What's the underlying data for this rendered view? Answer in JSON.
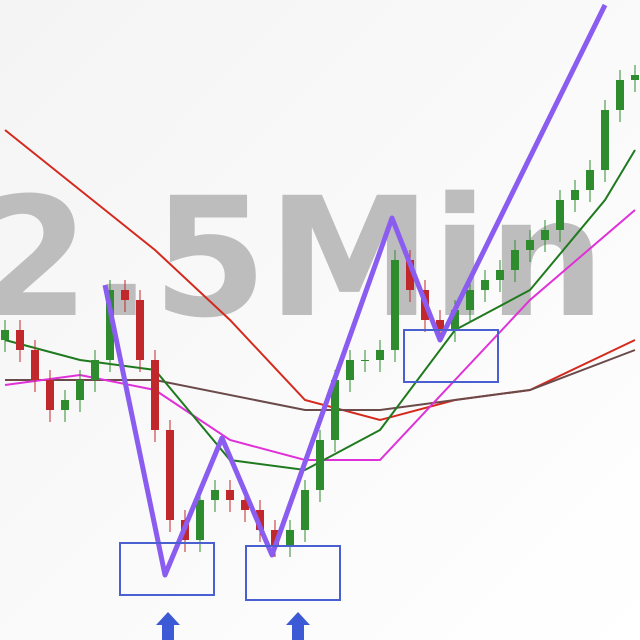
{
  "chart_data": {
    "type": "candlestick",
    "watermark": "2.5Min",
    "ylim": [
      0,
      640
    ],
    "open": [
      300,
      310,
      290,
      260,
      230,
      240,
      260,
      280,
      350,
      340,
      280,
      210,
      120,
      100,
      140,
      150,
      140,
      130,
      110,
      95,
      110,
      150,
      200,
      260,
      280,
      280,
      290,
      380,
      350,
      320,
      310,
      330,
      350,
      360,
      370,
      390,
      400,
      410,
      440,
      450,
      470,
      530,
      560
    ],
    "close": [
      310,
      290,
      260,
      230,
      240,
      260,
      280,
      350,
      340,
      280,
      210,
      120,
      100,
      140,
      150,
      140,
      130,
      110,
      95,
      110,
      150,
      200,
      260,
      280,
      280,
      290,
      380,
      350,
      320,
      310,
      330,
      350,
      360,
      370,
      390,
      400,
      410,
      440,
      450,
      470,
      530,
      560,
      565
    ],
    "high": [
      320,
      320,
      300,
      270,
      250,
      270,
      290,
      360,
      360,
      350,
      290,
      220,
      130,
      150,
      160,
      160,
      150,
      140,
      120,
      120,
      160,
      210,
      270,
      290,
      290,
      300,
      390,
      390,
      360,
      330,
      340,
      360,
      370,
      380,
      400,
      410,
      420,
      450,
      460,
      480,
      540,
      570,
      575
    ],
    "low": [
      288,
      278,
      248,
      218,
      218,
      228,
      248,
      268,
      328,
      268,
      198,
      108,
      88,
      88,
      128,
      128,
      118,
      98,
      83,
      83,
      98,
      138,
      188,
      248,
      268,
      268,
      278,
      338,
      308,
      298,
      298,
      318,
      338,
      348,
      358,
      378,
      388,
      398,
      428,
      438,
      458,
      518,
      548
    ],
    "up_color": "#2e8b2e",
    "down_color": "#c0282c",
    "lines": [
      {
        "color": "#d42a1e",
        "x": [
          0,
          5,
          10,
          15,
          20,
          25,
          30,
          35,
          42
        ],
        "values": [
          510,
          450,
          390,
          320,
          240,
          220,
          240,
          250,
          300
        ]
      },
      {
        "color": "#6b4a4a",
        "x": [
          0,
          10,
          20,
          25,
          30,
          35,
          42
        ],
        "values": [
          260,
          260,
          230,
          230,
          240,
          250,
          290
        ]
      },
      {
        "color": "#e030d8",
        "x": [
          0,
          5,
          10,
          15,
          20,
          25,
          30,
          35,
          42
        ],
        "values": [
          255,
          265,
          250,
          200,
          180,
          180,
          260,
          340,
          430
        ]
      },
      {
        "color": "#1f7a1f",
        "x": [
          0,
          5,
          10,
          15,
          20,
          25,
          30,
          35,
          40,
          42
        ],
        "values": [
          300,
          280,
          270,
          180,
          170,
          210,
          310,
          350,
          440,
          490
        ]
      }
    ]
  }
}
